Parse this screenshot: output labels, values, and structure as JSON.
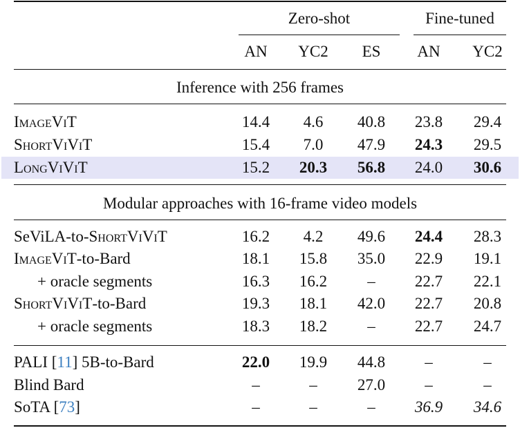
{
  "header": {
    "groups": [
      "Zero-shot",
      "Fine-tuned"
    ],
    "columns": [
      "AN",
      "YC2",
      "ES",
      "AN",
      "YC2"
    ]
  },
  "sections": [
    {
      "title": "Inference with 256 frames",
      "rows": [
        {
          "name": [
            {
              "t": "ImageViT",
              "sc": true
            }
          ],
          "cells": [
            "14.4",
            "4.6",
            "40.8",
            "23.8",
            "29.4"
          ],
          "bold": [],
          "italic": []
        },
        {
          "name": [
            {
              "t": "ShortViViT",
              "sc": true
            }
          ],
          "cells": [
            "15.4",
            "7.0",
            "47.9",
            "24.3",
            "29.5"
          ],
          "bold": [
            3
          ],
          "italic": []
        },
        {
          "name": [
            {
              "t": "LongViViT",
              "sc": true
            }
          ],
          "cells": [
            "15.2",
            "20.3",
            "56.8",
            "24.0",
            "30.6"
          ],
          "bold": [
            1,
            2,
            4
          ],
          "italic": [],
          "highlight": true
        }
      ]
    },
    {
      "title": "Modular approaches with 16-frame video models",
      "rows": [
        {
          "name": [
            {
              "t": "SeViLA-to-"
            },
            {
              "t": "ShortViViT",
              "sc": true
            }
          ],
          "cells": [
            "16.2",
            "4.2",
            "49.6",
            "24.4",
            "28.3"
          ],
          "bold": [
            3
          ],
          "italic": []
        },
        {
          "name": [
            {
              "t": "ImageViT",
              "sc": true
            },
            {
              "t": "-to-Bard"
            }
          ],
          "cells": [
            "18.1",
            "15.8",
            "35.0",
            "22.9",
            "19.1"
          ],
          "bold": [],
          "italic": []
        },
        {
          "name": [
            {
              "t": "+ oracle segments"
            }
          ],
          "indent": true,
          "cells": [
            "16.3",
            "16.2",
            "–",
            "22.7",
            "22.1"
          ],
          "bold": [],
          "italic": []
        },
        {
          "name": [
            {
              "t": "ShortViViT",
              "sc": true
            },
            {
              "t": "-to-Bard"
            }
          ],
          "cells": [
            "19.3",
            "18.1",
            "42.0",
            "22.7",
            "20.8"
          ],
          "bold": [],
          "italic": []
        },
        {
          "name": [
            {
              "t": "+ oracle segments"
            }
          ],
          "indent": true,
          "cells": [
            "18.3",
            "18.2",
            "–",
            "22.7",
            "24.7"
          ],
          "bold": [],
          "italic": []
        }
      ]
    },
    {
      "title": "",
      "rows": [
        {
          "name": [
            {
              "t": "PALI ["
            },
            {
              "t": "11",
              "ref": true
            },
            {
              "t": "] 5B-to-Bard"
            }
          ],
          "cells": [
            "22.0",
            "19.9",
            "44.8",
            "–",
            "–"
          ],
          "bold": [
            0
          ],
          "italic": []
        },
        {
          "name": [
            {
              "t": "Blind Bard"
            }
          ],
          "cells": [
            "–",
            "–",
            "27.0",
            "–",
            "–"
          ],
          "bold": [],
          "italic": []
        },
        {
          "name": [
            {
              "t": "SoTA ["
            },
            {
              "t": "73",
              "ref": true
            },
            {
              "t": "]"
            }
          ],
          "cells": [
            "–",
            "–",
            "–",
            "36.9",
            "34.6"
          ],
          "bold": [],
          "italic": [
            3,
            4
          ]
        }
      ]
    }
  ],
  "colors": {
    "highlight": "#e4e4f7",
    "reference": "#3c7fc0"
  }
}
